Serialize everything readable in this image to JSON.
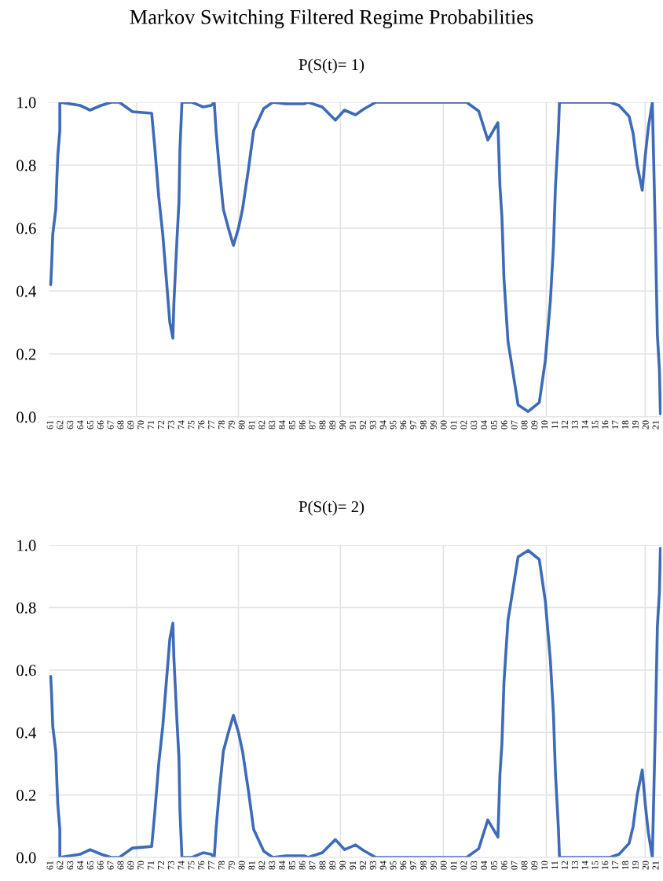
{
  "chart_data": [
    {
      "type": "line",
      "title": "Markov Switching Filtered Regime Probabilities",
      "subtitle": "P(S(t)= 1)",
      "x": [
        1961.0,
        1961.1,
        1961.2,
        1961.5,
        1961.6,
        1961.7,
        1961.9,
        1961.9,
        1963.9,
        1964.9,
        1966.0,
        1967.0,
        1967.8,
        1969.1,
        1971.0,
        1971.3,
        1971.7,
        1972.1,
        1972.5,
        1972.8,
        1973.1,
        1973.2,
        1973.5,
        1973.7,
        1973.8,
        1974.0,
        1975.0,
        1976.1,
        1976.9,
        1977.2,
        1977.4,
        1977.7,
        1978.1,
        1978.6,
        1979.1,
        1979.6,
        1980.0,
        1980.6,
        1981.1,
        1982.1,
        1983.0,
        1984.3,
        1986.1,
        1986.5,
        1987.9,
        1989.2,
        1990.1,
        1991.2,
        1992.0,
        1993.2,
        2002.2,
        2003.4,
        2004.3,
        2005.3,
        2005.5,
        2005.7,
        2005.9,
        2006.3,
        2006.7,
        2007.3,
        2008.3,
        2009.4,
        2010.0,
        2010.5,
        2010.8,
        2011.0,
        2011.3,
        2011.4,
        2016.4,
        2017.3,
        2018.3,
        2018.7,
        2019.1,
        2019.6,
        2019.9,
        2020.2,
        2020.6,
        2020.7,
        2020.9,
        2021.1,
        2021.3,
        2021.4
      ],
      "series": [
        {
          "color": "#3d6bb8",
          "values": [
            0.42,
            0.49,
            0.58,
            0.66,
            0.75,
            0.83,
            0.91,
            1.0,
            0.99,
            0.975,
            0.99,
            1.0,
            1.0,
            0.97,
            0.965,
            0.86,
            0.7,
            0.58,
            0.42,
            0.3,
            0.25,
            0.36,
            0.56,
            0.68,
            0.85,
            1.0,
            1.0,
            0.985,
            0.99,
            1.0,
            0.9,
            0.79,
            0.66,
            0.6,
            0.545,
            0.6,
            0.66,
            0.79,
            0.91,
            0.98,
            1.0,
            0.995,
            0.995,
            1.0,
            0.985,
            0.943,
            0.975,
            0.96,
            0.978,
            1.0,
            1.0,
            0.972,
            0.88,
            0.935,
            0.735,
            0.635,
            0.44,
            0.24,
            0.16,
            0.038,
            0.017,
            0.046,
            0.18,
            0.37,
            0.54,
            0.73,
            0.91,
            1.0,
            1.0,
            0.99,
            0.955,
            0.9,
            0.8,
            0.72,
            0.83,
            0.92,
            1.0,
            0.86,
            0.58,
            0.26,
            0.15,
            0.01
          ]
        }
      ],
      "xlim": [
        1960.8,
        2021.5
      ],
      "ylim": [
        0,
        1
      ],
      "yticks": [
        {
          "value": 0,
          "label": "0.0"
        },
        {
          "value": 0.2,
          "label": "0.2"
        },
        {
          "value": 0.4,
          "label": "0.4"
        },
        {
          "value": 0.6,
          "label": "0.6"
        },
        {
          "value": 0.8,
          "label": "0.8"
        },
        {
          "value": 1,
          "label": "1.0"
        }
      ],
      "xticks": [
        {
          "value": 1961,
          "label": "61"
        },
        {
          "value": 1962,
          "label": "62"
        },
        {
          "value": 1963,
          "label": "63"
        },
        {
          "value": 1964,
          "label": "64"
        },
        {
          "value": 1965,
          "label": "65"
        },
        {
          "value": 1966,
          "label": "66"
        },
        {
          "value": 1967,
          "label": "67"
        },
        {
          "value": 1968,
          "label": "68"
        },
        {
          "value": 1969,
          "label": "69"
        },
        {
          "value": 1970,
          "label": "70"
        },
        {
          "value": 1971,
          "label": "71"
        },
        {
          "value": 1972,
          "label": "72"
        },
        {
          "value": 1973,
          "label": "73"
        },
        {
          "value": 1974,
          "label": "74"
        },
        {
          "value": 1975,
          "label": "75"
        },
        {
          "value": 1976,
          "label": "76"
        },
        {
          "value": 1977,
          "label": "77"
        },
        {
          "value": 1978,
          "label": "78"
        },
        {
          "value": 1979,
          "label": "79"
        },
        {
          "value": 1980,
          "label": "80"
        },
        {
          "value": 1981,
          "label": "81"
        },
        {
          "value": 1982,
          "label": "82"
        },
        {
          "value": 1983,
          "label": "83"
        },
        {
          "value": 1984,
          "label": "84"
        },
        {
          "value": 1985,
          "label": "85"
        },
        {
          "value": 1986,
          "label": "86"
        },
        {
          "value": 1987,
          "label": "87"
        },
        {
          "value": 1988,
          "label": "88"
        },
        {
          "value": 1989,
          "label": "89"
        },
        {
          "value": 1990,
          "label": "90"
        },
        {
          "value": 1991,
          "label": "91"
        },
        {
          "value": 1992,
          "label": "92"
        },
        {
          "value": 1993,
          "label": "93"
        },
        {
          "value": 1994,
          "label": "94"
        },
        {
          "value": 1995,
          "label": "95"
        },
        {
          "value": 1996,
          "label": "96"
        },
        {
          "value": 1997,
          "label": "97"
        },
        {
          "value": 1998,
          "label": "98"
        },
        {
          "value": 1999,
          "label": "99"
        },
        {
          "value": 2000,
          "label": "00"
        },
        {
          "value": 2001,
          "label": "01"
        },
        {
          "value": 2002,
          "label": "02"
        },
        {
          "value": 2003,
          "label": "03"
        },
        {
          "value": 2004,
          "label": "04"
        },
        {
          "value": 2005,
          "label": "05"
        },
        {
          "value": 2006,
          "label": "06"
        },
        {
          "value": 2007,
          "label": "07"
        },
        {
          "value": 2008,
          "label": "08"
        },
        {
          "value": 2009,
          "label": "09"
        },
        {
          "value": 2010,
          "label": "10"
        },
        {
          "value": 2011,
          "label": "11"
        },
        {
          "value": 2012,
          "label": "12"
        },
        {
          "value": 2013,
          "label": "13"
        },
        {
          "value": 2014,
          "label": "14"
        },
        {
          "value": 2015,
          "label": "15"
        },
        {
          "value": 2016,
          "label": "16"
        },
        {
          "value": 2017,
          "label": "17"
        },
        {
          "value": 2018,
          "label": "18"
        },
        {
          "value": 2019,
          "label": "19"
        },
        {
          "value": 2020,
          "label": "20"
        },
        {
          "value": 2021,
          "label": "21"
        }
      ],
      "grid": "y",
      "ref_lines": [
        {
          "axis": "x",
          "value": 1969.5,
          "color": "#e3e3e3"
        },
        {
          "axis": "x",
          "value": 1979.6,
          "color": "#e3e3e3"
        },
        {
          "axis": "x",
          "value": 1989.7,
          "color": "#e3e3e3"
        },
        {
          "axis": "x",
          "value": 1999.9,
          "color": "#e3e3e3"
        },
        {
          "axis": "x",
          "value": 2010.1,
          "color": "#e3e3e3"
        },
        {
          "axis": "x",
          "value": 2019.9,
          "color": "#e3e3e3"
        }
      ]
    },
    {
      "type": "line",
      "subtitle": "P(S(t)= 2)",
      "x": [
        1961.0,
        1961.1,
        1961.2,
        1961.5,
        1961.6,
        1961.7,
        1961.9,
        1961.9,
        1963.9,
        1964.9,
        1966.0,
        1967.0,
        1967.8,
        1969.1,
        1971.0,
        1971.3,
        1971.7,
        1972.1,
        1972.5,
        1972.8,
        1973.1,
        1973.2,
        1973.5,
        1973.7,
        1973.8,
        1974.0,
        1975.0,
        1976.1,
        1976.9,
        1977.2,
        1977.4,
        1977.7,
        1978.1,
        1978.6,
        1979.1,
        1979.6,
        1980.0,
        1980.6,
        1981.1,
        1982.1,
        1983.0,
        1984.3,
        1986.1,
        1986.5,
        1987.9,
        1989.2,
        1990.1,
        1991.2,
        1992.0,
        1993.2,
        2002.2,
        2003.4,
        2004.3,
        2005.3,
        2005.5,
        2005.7,
        2005.9,
        2006.3,
        2006.7,
        2007.3,
        2008.3,
        2009.4,
        2010.0,
        2010.5,
        2010.8,
        2011.0,
        2011.3,
        2011.4,
        2016.4,
        2017.3,
        2018.3,
        2018.7,
        2019.1,
        2019.6,
        2019.9,
        2020.2,
        2020.6,
        2020.7,
        2020.9,
        2021.1,
        2021.3,
        2021.4
      ],
      "series": [
        {
          "color": "#3d6bb8",
          "values": [
            0.58,
            0.51,
            0.42,
            0.34,
            0.25,
            0.17,
            0.09,
            0.0,
            0.01,
            0.025,
            0.01,
            0.0,
            0.0,
            0.03,
            0.035,
            0.14,
            0.3,
            0.42,
            0.58,
            0.7,
            0.75,
            0.64,
            0.44,
            0.32,
            0.15,
            0.0,
            0.0,
            0.015,
            0.01,
            0.0,
            0.1,
            0.21,
            0.34,
            0.4,
            0.455,
            0.4,
            0.34,
            0.21,
            0.09,
            0.02,
            0.0,
            0.005,
            0.005,
            0.0,
            0.015,
            0.057,
            0.025,
            0.04,
            0.022,
            0.0,
            0.0,
            0.028,
            0.12,
            0.065,
            0.265,
            0.365,
            0.56,
            0.76,
            0.84,
            0.962,
            0.983,
            0.954,
            0.82,
            0.63,
            0.46,
            0.27,
            0.09,
            0.0,
            0.0,
            0.01,
            0.045,
            0.1,
            0.2,
            0.28,
            0.17,
            0.08,
            0.0,
            0.14,
            0.42,
            0.74,
            0.85,
            0.99
          ]
        }
      ],
      "xlim": [
        1960.8,
        2021.5
      ],
      "ylim": [
        0,
        1
      ],
      "yticks": [
        {
          "value": 0,
          "label": "0.0"
        },
        {
          "value": 0.2,
          "label": "0.2"
        },
        {
          "value": 0.4,
          "label": "0.4"
        },
        {
          "value": 0.6,
          "label": "0.6"
        },
        {
          "value": 0.8,
          "label": "0.8"
        },
        {
          "value": 1,
          "label": "1.0"
        }
      ],
      "xticks": [
        {
          "value": 1961,
          "label": "61"
        },
        {
          "value": 1962,
          "label": "62"
        },
        {
          "value": 1963,
          "label": "63"
        },
        {
          "value": 1964,
          "label": "64"
        },
        {
          "value": 1965,
          "label": "65"
        },
        {
          "value": 1966,
          "label": "66"
        },
        {
          "value": 1967,
          "label": "67"
        },
        {
          "value": 1968,
          "label": "68"
        },
        {
          "value": 1969,
          "label": "69"
        },
        {
          "value": 1970,
          "label": "70"
        },
        {
          "value": 1971,
          "label": "71"
        },
        {
          "value": 1972,
          "label": "72"
        },
        {
          "value": 1973,
          "label": "73"
        },
        {
          "value": 1974,
          "label": "74"
        },
        {
          "value": 1975,
          "label": "75"
        },
        {
          "value": 1976,
          "label": "76"
        },
        {
          "value": 1977,
          "label": "77"
        },
        {
          "value": 1978,
          "label": "78"
        },
        {
          "value": 1979,
          "label": "79"
        },
        {
          "value": 1980,
          "label": "80"
        },
        {
          "value": 1981,
          "label": "81"
        },
        {
          "value": 1982,
          "label": "82"
        },
        {
          "value": 1983,
          "label": "83"
        },
        {
          "value": 1984,
          "label": "84"
        },
        {
          "value": 1985,
          "label": "85"
        },
        {
          "value": 1986,
          "label": "86"
        },
        {
          "value": 1987,
          "label": "87"
        },
        {
          "value": 1988,
          "label": "88"
        },
        {
          "value": 1989,
          "label": "89"
        },
        {
          "value": 1990,
          "label": "90"
        },
        {
          "value": 1991,
          "label": "91"
        },
        {
          "value": 1992,
          "label": "92"
        },
        {
          "value": 1993,
          "label": "93"
        },
        {
          "value": 1994,
          "label": "94"
        },
        {
          "value": 1995,
          "label": "95"
        },
        {
          "value": 1996,
          "label": "96"
        },
        {
          "value": 1997,
          "label": "97"
        },
        {
          "value": 1998,
          "label": "98"
        },
        {
          "value": 1999,
          "label": "99"
        },
        {
          "value": 2000,
          "label": "00"
        },
        {
          "value": 2001,
          "label": "01"
        },
        {
          "value": 2002,
          "label": "02"
        },
        {
          "value": 2003,
          "label": "03"
        },
        {
          "value": 2004,
          "label": "04"
        },
        {
          "value": 2005,
          "label": "05"
        },
        {
          "value": 2006,
          "label": "06"
        },
        {
          "value": 2007,
          "label": "07"
        },
        {
          "value": 2008,
          "label": "08"
        },
        {
          "value": 2009,
          "label": "09"
        },
        {
          "value": 2010,
          "label": "10"
        },
        {
          "value": 2011,
          "label": "11"
        },
        {
          "value": 2012,
          "label": "12"
        },
        {
          "value": 2013,
          "label": "13"
        },
        {
          "value": 2014,
          "label": "14"
        },
        {
          "value": 2015,
          "label": "15"
        },
        {
          "value": 2016,
          "label": "16"
        },
        {
          "value": 2017,
          "label": "17"
        },
        {
          "value": 2018,
          "label": "18"
        },
        {
          "value": 2019,
          "label": "19"
        },
        {
          "value": 2020,
          "label": "20"
        },
        {
          "value": 2021,
          "label": "21"
        }
      ],
      "grid": "y",
      "ref_lines": [
        {
          "axis": "x",
          "value": 1969.5,
          "color": "#e3e3e3"
        },
        {
          "axis": "x",
          "value": 1979.6,
          "color": "#e3e3e3"
        },
        {
          "axis": "x",
          "value": 1989.7,
          "color": "#e3e3e3"
        },
        {
          "axis": "x",
          "value": 1999.9,
          "color": "#e3e3e3"
        },
        {
          "axis": "x",
          "value": 2010.1,
          "color": "#e3e3e3"
        },
        {
          "axis": "x",
          "value": 2019.9,
          "color": "#e3e3e3"
        }
      ]
    }
  ]
}
